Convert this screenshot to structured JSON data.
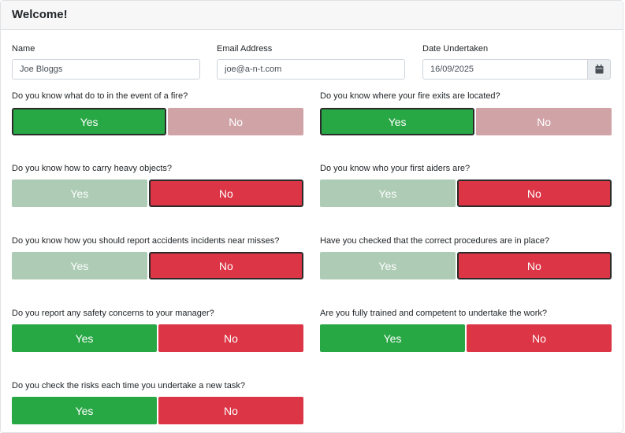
{
  "header": {
    "title": "Welcome!"
  },
  "fields": {
    "name": {
      "label": "Name",
      "value": "Joe Bloggs"
    },
    "email": {
      "label": "Email Address",
      "value": "joe@a-n-t.com"
    },
    "date": {
      "label": "Date Undertaken",
      "value": "16/09/2025",
      "icon": "calendar-icon"
    }
  },
  "options": {
    "yes": "Yes",
    "no": "No"
  },
  "questions": [
    {
      "text": "Do you know what do to in the event of a fire?",
      "answer": "Yes"
    },
    {
      "text": "Do you know where your fire exits are located?",
      "answer": "Yes"
    },
    {
      "text": "Do you know how to carry heavy objects?",
      "answer": "No"
    },
    {
      "text": "Do you know who your first aiders are?",
      "answer": "No"
    },
    {
      "text": "Do you know how you should report accidents incidents near misses?",
      "answer": "No"
    },
    {
      "text": "Have you checked that the correct procedures are in place?",
      "answer": "No"
    },
    {
      "text": "Do you report any safety concerns to your manager?",
      "answer": ""
    },
    {
      "text": "Are you fully trained and competent to undertake the work?",
      "answer": ""
    },
    {
      "text": "Do you check the risks each time you undertake a new task?",
      "answer": ""
    }
  ],
  "colors": {
    "yes_active": "#28a745",
    "yes_faded": "#adcbb5",
    "no_active": "#dc3545",
    "no_faded": "#d0a3a7"
  }
}
